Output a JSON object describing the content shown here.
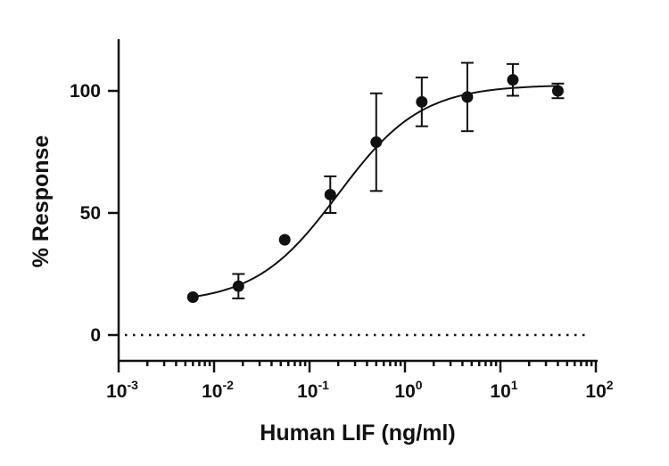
{
  "chart_data": {
    "type": "scatter",
    "title": "",
    "xlabel": "Human LIF (ng/ml)",
    "ylabel": "% Response",
    "xscale": "log10",
    "xlim": [
      0.001,
      100
    ],
    "ylim": [
      -10,
      120
    ],
    "x_ticks": [
      {
        "base": "10",
        "exp": "-3",
        "value": 0.001
      },
      {
        "base": "10",
        "exp": "-2",
        "value": 0.01
      },
      {
        "base": "10",
        "exp": "-1",
        "value": 0.1
      },
      {
        "base": "10",
        "exp": "0",
        "value": 1
      },
      {
        "base": "10",
        "exp": "1",
        "value": 10
      },
      {
        "base": "10",
        "exp": "2",
        "value": 100
      }
    ],
    "y_ticks": [
      {
        "label": "0",
        "value": 0
      },
      {
        "label": "50",
        "value": 50
      },
      {
        "label": "100",
        "value": 100
      }
    ],
    "series": [
      {
        "name": "Human LIF",
        "points": [
          {
            "x": 0.006,
            "y": 15.5,
            "err": 0
          },
          {
            "x": 0.018,
            "y": 20,
            "err": 5
          },
          {
            "x": 0.055,
            "y": 39,
            "err": 0
          },
          {
            "x": 0.165,
            "y": 57.5,
            "err": 7.5
          },
          {
            "x": 0.5,
            "y": 79,
            "err": 20
          },
          {
            "x": 1.5,
            "y": 95.5,
            "err": 10
          },
          {
            "x": 4.5,
            "y": 97.5,
            "err": 14
          },
          {
            "x": 13.5,
            "y": 104.5,
            "err": 6.5
          },
          {
            "x": 40,
            "y": 100,
            "err": 3
          }
        ]
      }
    ],
    "fit": {
      "type": "4PL",
      "bottom": 13,
      "top": 102.5,
      "ec50": 0.2,
      "hill": 1.0
    },
    "baseline": {
      "y": 0,
      "style": "dotted"
    }
  }
}
